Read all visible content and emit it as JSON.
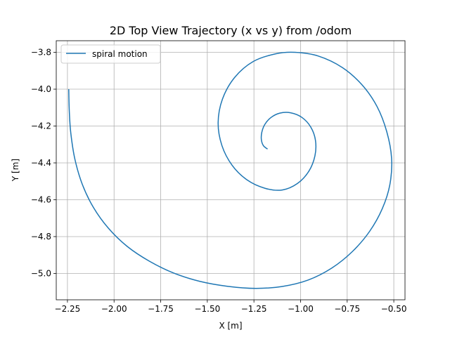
{
  "chart_data": {
    "type": "line",
    "title": "2D Top View Trajectory (x vs y) from /odom",
    "xlabel": "X [m]",
    "ylabel": "Y [m]",
    "xlim": [
      -2.31,
      -0.44
    ],
    "ylim": [
      -5.143,
      -3.737
    ],
    "xticks": [
      -2.25,
      -2.0,
      -1.75,
      -1.5,
      -1.25,
      -1.0,
      -0.75,
      -0.5
    ],
    "yticks": [
      -3.8,
      -4.0,
      -4.2,
      -4.4,
      -4.6,
      -4.8,
      -5.0
    ],
    "xtick_labels": [
      "−2.25",
      "−2.00",
      "−1.75",
      "−1.50",
      "−1.25",
      "−1.00",
      "−0.75",
      "−0.50"
    ],
    "ytick_labels": [
      "−3.8",
      "−4.0",
      "−4.2",
      "−4.4",
      "−4.6",
      "−4.8",
      "−5.0"
    ],
    "grid": true,
    "legend_position": "top-left",
    "series": [
      {
        "name": "spiral motion",
        "color": "#1f77b4",
        "points": [
          [
            -1.177,
            -4.325
          ],
          [
            -1.199,
            -4.307
          ],
          [
            -1.21,
            -4.275
          ],
          [
            -1.208,
            -4.235
          ],
          [
            -1.192,
            -4.192
          ],
          [
            -1.159,
            -4.154
          ],
          [
            -1.111,
            -4.13
          ],
          [
            -1.054,
            -4.128
          ],
          [
            -0.993,
            -4.153
          ],
          [
            -0.945,
            -4.206
          ],
          [
            -0.92,
            -4.278
          ],
          [
            -0.923,
            -4.362
          ],
          [
            -0.956,
            -4.446
          ],
          [
            -1.017,
            -4.512
          ],
          [
            -1.098,
            -4.547
          ],
          [
            -1.19,
            -4.538
          ],
          [
            -1.286,
            -4.493
          ],
          [
            -1.367,
            -4.413
          ],
          [
            -1.422,
            -4.305
          ],
          [
            -1.442,
            -4.182
          ],
          [
            -1.419,
            -4.054
          ],
          [
            -1.354,
            -3.937
          ],
          [
            -1.254,
            -3.85
          ],
          [
            -1.133,
            -3.808
          ],
          [
            -1.03,
            -3.8
          ],
          [
            -0.905,
            -3.82
          ],
          [
            -0.775,
            -3.883
          ],
          [
            -0.669,
            -3.978
          ],
          [
            -0.59,
            -4.094
          ],
          [
            -0.538,
            -4.23
          ],
          [
            -0.512,
            -4.374
          ],
          [
            -0.521,
            -4.517
          ],
          [
            -0.562,
            -4.649
          ],
          [
            -0.63,
            -4.772
          ],
          [
            -0.722,
            -4.881
          ],
          [
            -0.833,
            -4.971
          ],
          [
            -0.96,
            -5.036
          ],
          [
            -1.1,
            -5.071
          ],
          [
            -1.24,
            -5.081
          ],
          [
            -1.39,
            -5.07
          ],
          [
            -1.54,
            -5.043
          ],
          [
            -1.68,
            -4.998
          ],
          [
            -1.81,
            -4.934
          ],
          [
            -1.93,
            -4.853
          ],
          [
            -2.03,
            -4.755
          ],
          [
            -2.11,
            -4.643
          ],
          [
            -2.17,
            -4.517
          ],
          [
            -2.21,
            -4.38
          ],
          [
            -2.232,
            -4.238
          ],
          [
            -2.24,
            -4.12
          ],
          [
            -2.243,
            -4.0
          ]
        ]
      }
    ]
  }
}
